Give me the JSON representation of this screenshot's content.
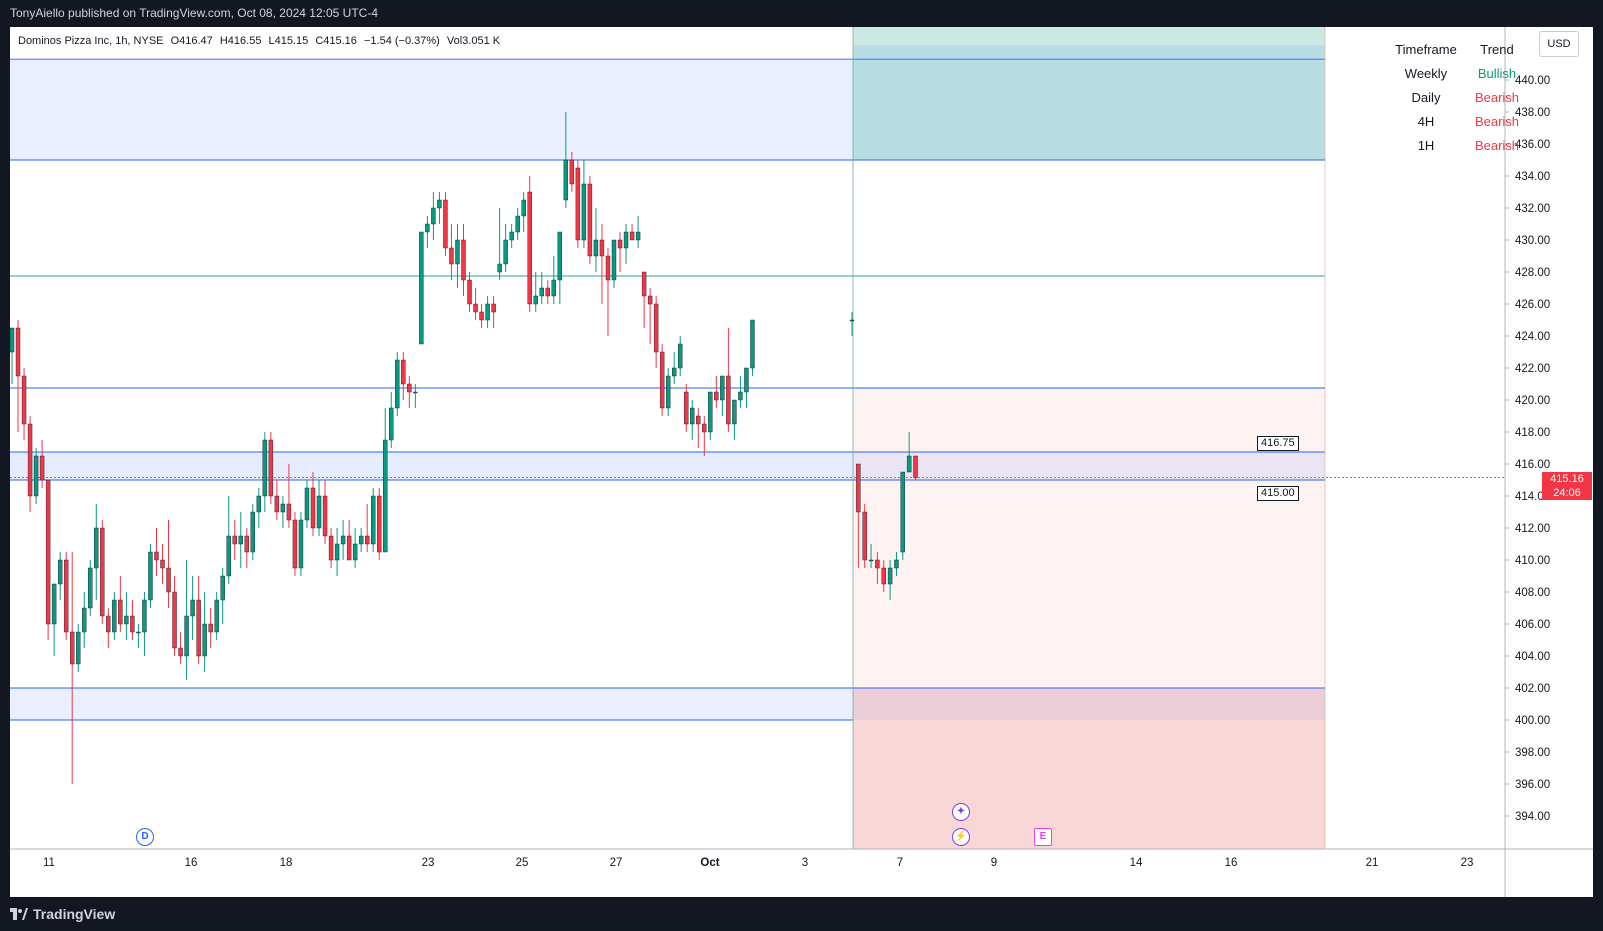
{
  "header": {
    "publish_line": "TonyAiello published on TradingView.com, Oct 08, 2024 12:05 UTC-4"
  },
  "legend": {
    "symbol": "Dominos Pizza Inc, 1h, NYSE",
    "open": "O416.47",
    "high": "H416.55",
    "low": "L415.15",
    "close": "C415.16",
    "change": "−1.54 (−0.37%)",
    "volume": "Vol3.051 K"
  },
  "trend_table": {
    "headers": [
      "Timeframe",
      "Trend"
    ],
    "rows": [
      {
        "tf": "Weekly",
        "trend": "Bullish",
        "color": "#089981"
      },
      {
        "tf": "Daily",
        "trend": "Bearish",
        "color": "#f23645"
      },
      {
        "tf": "4H",
        "trend": "Bearish",
        "color": "#f23645"
      },
      {
        "tf": "1H",
        "trend": "Bearish",
        "color": "#f23645"
      }
    ]
  },
  "currency_button": "USD",
  "price_axis": [
    "440.00",
    "438.00",
    "436.00",
    "434.00",
    "432.00",
    "430.00",
    "428.00",
    "426.00",
    "424.00",
    "422.00",
    "420.00",
    "418.00",
    "416.00",
    "414.00",
    "412.00",
    "410.00",
    "408.00",
    "406.00",
    "404.00",
    "402.00",
    "400.00",
    "398.00",
    "396.00",
    "394.00"
  ],
  "time_axis": [
    "11",
    "16",
    "18",
    "23",
    "25",
    "27",
    "Oct",
    "3",
    "7",
    "9",
    "14",
    "16",
    "21",
    "23"
  ],
  "price_labels": {
    "upper": "416.75",
    "lower": "415.00"
  },
  "last_price": {
    "value": "415.16",
    "countdown": "24:06"
  },
  "events": {
    "dividend": "D",
    "earnings": "E"
  },
  "footer": {
    "brand": "TradingView"
  },
  "colors": {
    "up": "#089981",
    "down": "#f23645",
    "zone_blue": "#2962ff",
    "tp_green": "#a5d6d0",
    "sl_red": "#f8c9c9"
  },
  "chart_data": {
    "type": "candlestick",
    "symbol": "Dominos Pizza Inc",
    "timeframe": "1h",
    "ylim": [
      392.5,
      442
    ],
    "zones": [
      {
        "kind": "supply",
        "from": 435,
        "to": 441.3
      },
      {
        "kind": "demand",
        "from": 415.0,
        "to": 416.75
      },
      {
        "kind": "demand",
        "from": 400,
        "to": 402
      }
    ],
    "levels": [
      427.75,
      420.75
    ],
    "position": {
      "side": "short",
      "entry": 415.16,
      "target_to": 441.3,
      "target_from": 435,
      "stop_zone_from": 402,
      "stop_zone_to": 420.75
    },
    "candles": [
      [
        423,
        424.5,
        421,
        424.5
      ],
      [
        424.5,
        425,
        418,
        421.5
      ],
      [
        421.5,
        422,
        417.5,
        418.5
      ],
      [
        418.5,
        419,
        413,
        414
      ],
      [
        414,
        417,
        413.5,
        416.5
      ],
      [
        416.5,
        417.5,
        414.5,
        415
      ],
      [
        415,
        415,
        405,
        406
      ],
      [
        406,
        408.5,
        404,
        408.5
      ],
      [
        408.5,
        410.5,
        407.5,
        410
      ],
      [
        410,
        410.5,
        405,
        405.5
      ],
      [
        405.5,
        410.5,
        396,
        403.5
      ],
      [
        403.5,
        406,
        403,
        405.5
      ],
      [
        405.5,
        408,
        404.5,
        407
      ],
      [
        407,
        410,
        406.5,
        409.5
      ],
      [
        409.5,
        413.5,
        407.5,
        412
      ],
      [
        412,
        412.5,
        406,
        406.5
      ],
      [
        406.5,
        407,
        404.5,
        405.5
      ],
      [
        405.5,
        408,
        405,
        407.5
      ],
      [
        407.5,
        409,
        405.5,
        406
      ],
      [
        406,
        408,
        405,
        406.5
      ],
      [
        406.5,
        407.5,
        405,
        405.5
      ],
      [
        405.5,
        406,
        404.5,
        405.5
      ],
      [
        405.5,
        408,
        404,
        407.5
      ],
      [
        407.5,
        411,
        407,
        410.5
      ],
      [
        410.5,
        412,
        409,
        410
      ],
      [
        410,
        411,
        408.5,
        409.5
      ],
      [
        409.5,
        412.5,
        407,
        408
      ],
      [
        408,
        409,
        404,
        404.5
      ],
      [
        404.5,
        405.5,
        403.5,
        404
      ],
      [
        404,
        410,
        402.5,
        406.5
      ],
      [
        406.5,
        409,
        405,
        407.5
      ],
      [
        407.5,
        409,
        403.5,
        404
      ],
      [
        404,
        408,
        403,
        406
      ],
      [
        406,
        407,
        404.5,
        405.5
      ],
      [
        405.5,
        408,
        405,
        407.5
      ],
      [
        407.5,
        409.5,
        406,
        409
      ],
      [
        409,
        414,
        408.5,
        411.5
      ],
      [
        411.5,
        412.5,
        410,
        411
      ],
      [
        411,
        413,
        409.5,
        411.5
      ],
      [
        411.5,
        412,
        409.5,
        410.5
      ],
      [
        410.5,
        413.5,
        410,
        413
      ],
      [
        413,
        414.5,
        412,
        414
      ],
      [
        414,
        418,
        413,
        417.5
      ],
      [
        417.5,
        418,
        413.5,
        414
      ],
      [
        414,
        415,
        412.5,
        413
      ],
      [
        413,
        414,
        412,
        413.5
      ],
      [
        413.5,
        416,
        412,
        412.5
      ],
      [
        412.5,
        413,
        409,
        409.5
      ],
      [
        409.5,
        413,
        409,
        412.5
      ],
      [
        412.5,
        415,
        412,
        414.5
      ],
      [
        414.5,
        415.5,
        411.5,
        412
      ],
      [
        412,
        415,
        411.5,
        414
      ],
      [
        414,
        415,
        411,
        411.5
      ],
      [
        411.5,
        412,
        409.5,
        410
      ],
      [
        410,
        412,
        409,
        411
      ],
      [
        411,
        412.5,
        410,
        411.5
      ],
      [
        411.5,
        412.5,
        410,
        410
      ],
      [
        410,
        412,
        409.5,
        411
      ],
      [
        411,
        412,
        410.5,
        411.5
      ],
      [
        411.5,
        413.5,
        410.5,
        411
      ],
      [
        411,
        414.5,
        410.5,
        414
      ],
      [
        414,
        414.5,
        410,
        410.5
      ],
      [
        410.5,
        419.5,
        410.5,
        417.5
      ],
      [
        417.5,
        420.5,
        417,
        419.5
      ],
      [
        419.5,
        423,
        419,
        422.5
      ],
      [
        422.5,
        423,
        420,
        421
      ],
      [
        421,
        421.5,
        419.5,
        420.5
      ],
      [
        420.5,
        421,
        419.5,
        420.5
      ],
      [
        423.5,
        430.5,
        423.5,
        430.5
      ],
      [
        430.5,
        431.5,
        429.5,
        431
      ],
      [
        431,
        433,
        430,
        432
      ],
      [
        432,
        433,
        431,
        432.5
      ],
      [
        432.5,
        433,
        429,
        429.5
      ],
      [
        429.5,
        431,
        427.5,
        428.5
      ],
      [
        428.5,
        431,
        427,
        430
      ],
      [
        430,
        431,
        426.5,
        427.5
      ],
      [
        427.5,
        428,
        425.5,
        426
      ],
      [
        426,
        427,
        425,
        425.5
      ],
      [
        425.5,
        426,
        424.5,
        425
      ],
      [
        425,
        426.5,
        424.5,
        426
      ],
      [
        426,
        426.5,
        424.5,
        425.5
      ],
      [
        428,
        432,
        427.5,
        428.5
      ],
      [
        428.5,
        431,
        428,
        430
      ],
      [
        430,
        431,
        429.5,
        430.5
      ],
      [
        430.5,
        432,
        430,
        431.5
      ],
      [
        431.5,
        433,
        430.5,
        432.5
      ],
      [
        433,
        434,
        425.5,
        426
      ],
      [
        426,
        428,
        425.5,
        426.5
      ],
      [
        426.5,
        428,
        426,
        427
      ],
      [
        427,
        427.5,
        426,
        426.5
      ],
      [
        426.5,
        429,
        426,
        427.5
      ],
      [
        427.5,
        430.5,
        426,
        430.5
      ],
      [
        432.5,
        438,
        432,
        435
      ],
      [
        435,
        435.5,
        433,
        433.5
      ],
      [
        434.5,
        435,
        429.5,
        430
      ],
      [
        430,
        435,
        429.5,
        433.5
      ],
      [
        433.5,
        434,
        428.5,
        429
      ],
      [
        429,
        432,
        428,
        430
      ],
      [
        430,
        431,
        426,
        429
      ],
      [
        429,
        429.5,
        424,
        427.5
      ],
      [
        427.5,
        430,
        427,
        430
      ],
      [
        430,
        430.5,
        428,
        429.5
      ],
      [
        429.5,
        431,
        428.5,
        430.5
      ],
      [
        430.5,
        431,
        430,
        430
      ],
      [
        430,
        431.5,
        429.5,
        430.5
      ],
      [
        428,
        428,
        424.5,
        426.5
      ],
      [
        426.5,
        427,
        423.5,
        426
      ],
      [
        426,
        426.5,
        422,
        423
      ],
      [
        423,
        423.5,
        419,
        419.5
      ],
      [
        419.5,
        422,
        419,
        421.5
      ],
      [
        421.5,
        423,
        421,
        422
      ],
      [
        422,
        424,
        421.5,
        423.5
      ],
      [
        420.5,
        421,
        418,
        418.5
      ],
      [
        418.5,
        420,
        417.5,
        419.5
      ],
      [
        419,
        419.5,
        417,
        418.5
      ],
      [
        418.5,
        419,
        416.5,
        418
      ],
      [
        418,
        420.5,
        417.5,
        420.5
      ],
      [
        420.5,
        421.5,
        419.5,
        420
      ],
      [
        420,
        421.5,
        419,
        421.5
      ],
      [
        421.5,
        424.5,
        418,
        418.5
      ],
      [
        418.5,
        420,
        417.5,
        420
      ],
      [
        420,
        421.5,
        419.5,
        420.5
      ],
      [
        420.5,
        422,
        419.5,
        422
      ],
      [
        422,
        425,
        421.5,
        425
      ],
      [
        425,
        425.5,
        424,
        425
      ],
      [
        416,
        416,
        409.5,
        413
      ],
      [
        413,
        413.5,
        409.5,
        410
      ],
      [
        410,
        411,
        409.5,
        410
      ],
      [
        410,
        410.5,
        408.5,
        409.5
      ],
      [
        409.5,
        410,
        408,
        408.5
      ],
      [
        408.5,
        410,
        407.5,
        409.5
      ],
      [
        409.5,
        410.5,
        409,
        410
      ],
      [
        410.5,
        415.5,
        410,
        415.5
      ],
      [
        415.5,
        418,
        415.5,
        416.5
      ],
      [
        416.5,
        416.5,
        415,
        415.16
      ]
    ]
  }
}
